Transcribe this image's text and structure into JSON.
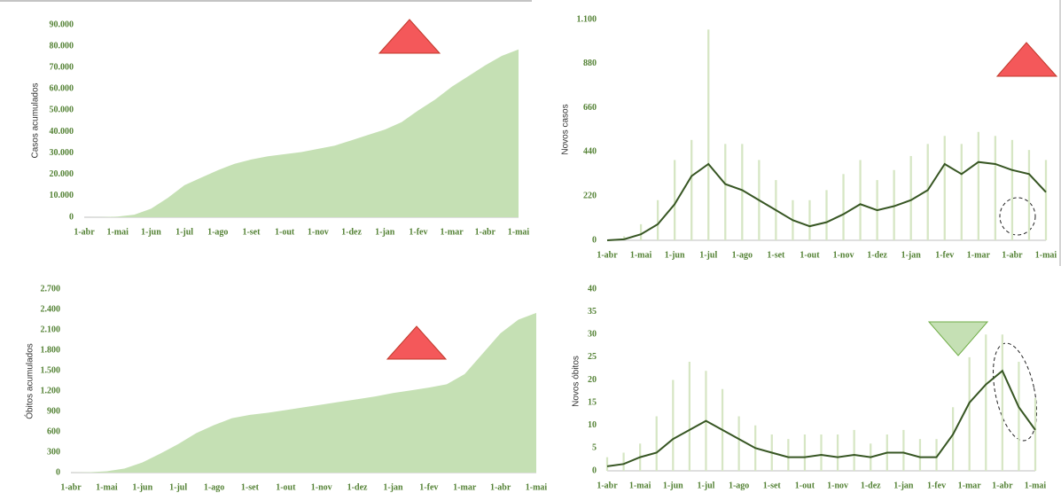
{
  "chart_data": [
    {
      "type": "area",
      "ylabel": "Casos acumulados",
      "categories": [
        "1-abr",
        null,
        "1-mai",
        null,
        "1-jun",
        null,
        "1-jul",
        null,
        "1-ago",
        null,
        "1-set",
        null,
        "1-out",
        null,
        "1-nov",
        null,
        "1-dez",
        null,
        "1-jan",
        null,
        "1-fev",
        null,
        "1-mar",
        null,
        "1-abr",
        null,
        "1-mai"
      ],
      "values": [
        0,
        50,
        300,
        1200,
        4000,
        9000,
        15000,
        18500,
        22000,
        25000,
        27000,
        28500,
        29500,
        30500,
        32000,
        33500,
        36000,
        38500,
        41000,
        44500,
        50000,
        55000,
        61000,
        66000,
        71000,
        75500,
        78500
      ],
      "color": "#c5e0b4",
      "ylim": [
        0,
        90000
      ],
      "yticks": [
        0,
        {
          "value": 10000,
          "label": "10.000"
        },
        {
          "value": 20000,
          "label": "20.000"
        },
        {
          "value": 30000,
          "label": "30.000"
        },
        {
          "value": 40000,
          "label": "40.000"
        },
        {
          "value": 50000,
          "label": "50.000"
        },
        {
          "value": 60000,
          "label": "60.000"
        },
        {
          "value": 70000,
          "label": "70.000"
        },
        {
          "value": 80000,
          "label": "80.000"
        },
        {
          "value": 90000,
          "label": "90.000"
        }
      ]
    },
    {
      "type": "line",
      "ylabel": "Novos casos",
      "categories": [
        "1-abr",
        null,
        "1-mai",
        null,
        "1-jun",
        null,
        "1-jul",
        null,
        "1-ago",
        null,
        "1-set",
        null,
        "1-out",
        null,
        "1-nov",
        null,
        "1-dez",
        null,
        "1-jan",
        null,
        "1-fev",
        null,
        "1-mar",
        null,
        "1-abr",
        null,
        "1-mai"
      ],
      "values": [
        0,
        5,
        30,
        80,
        180,
        320,
        380,
        280,
        250,
        200,
        150,
        100,
        70,
        90,
        130,
        180,
        150,
        170,
        200,
        250,
        380,
        330,
        390,
        380,
        350,
        330,
        240
      ],
      "daily_values": [
        0,
        20,
        80,
        200,
        400,
        500,
        1050,
        480,
        480,
        400,
        300,
        200,
        200,
        250,
        330,
        400,
        300,
        350,
        420,
        480,
        520,
        480,
        540,
        520,
        500,
        450,
        400
      ],
      "color": "#375623",
      "bar_color": "#d6e6c4",
      "ylim": [
        0,
        1100
      ],
      "yticks": [
        0,
        220,
        440,
        660,
        880,
        {
          "value": 1100,
          "label": "1.100"
        }
      ]
    },
    {
      "type": "area",
      "ylabel": "Óbitos acumulados",
      "categories": [
        "1-abr",
        null,
        "1-mai",
        null,
        "1-jun",
        null,
        "1-jul",
        null,
        "1-ago",
        null,
        "1-set",
        null,
        "1-out",
        null,
        "1-nov",
        null,
        "1-dez",
        null,
        "1-jan",
        null,
        "1-fev",
        null,
        "1-mar",
        null,
        "1-abr",
        null,
        "1-mai"
      ],
      "values": [
        0,
        5,
        20,
        60,
        150,
        280,
        420,
        580,
        700,
        800,
        850,
        880,
        920,
        960,
        1000,
        1040,
        1080,
        1120,
        1170,
        1210,
        1250,
        1300,
        1450,
        1750,
        2050,
        2250,
        2350
      ],
      "color": "#c5e0b4",
      "ylim": [
        0,
        2700
      ],
      "yticks": [
        0,
        300,
        600,
        900,
        {
          "value": 1200,
          "label": "1.200"
        },
        {
          "value": 1500,
          "label": "1.500"
        },
        {
          "value": 1800,
          "label": "1.800"
        },
        {
          "value": 2100,
          "label": "2.100"
        },
        {
          "value": 2400,
          "label": "2.400"
        },
        {
          "value": 2700,
          "label": "2.700"
        }
      ]
    },
    {
      "type": "line",
      "ylabel": "Novos óbitos",
      "categories": [
        "1-abr",
        null,
        "1-mai",
        null,
        "1-jun",
        null,
        "1-jul",
        null,
        "1-ago",
        null,
        "1-set",
        null,
        "1-out",
        null,
        "1-nov",
        null,
        "1-dez",
        null,
        "1-jan",
        null,
        "1-fev",
        null,
        "1-mar",
        null,
        "1-abr",
        null,
        "1-mai"
      ],
      "values": [
        1,
        1.5,
        3,
        4,
        7,
        9,
        11,
        9,
        7,
        5,
        4,
        3,
        3,
        3.5,
        3,
        3.5,
        3,
        4,
        4,
        3,
        3,
        8,
        15,
        19,
        22,
        14,
        9
      ],
      "daily_values": [
        3,
        4,
        6,
        12,
        20,
        24,
        22,
        18,
        12,
        10,
        8,
        7,
        8,
        8,
        8,
        9,
        6,
        8,
        9,
        7,
        7,
        14,
        25,
        30,
        30,
        24,
        16
      ],
      "color": "#375623",
      "bar_color": "#d6e6c4",
      "ylim": [
        0,
        40
      ],
      "yticks": [
        0,
        5,
        10,
        15,
        20,
        25,
        30,
        35,
        40
      ]
    }
  ]
}
